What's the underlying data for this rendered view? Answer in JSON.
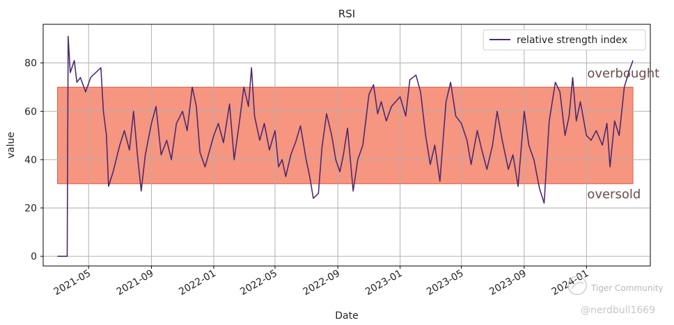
{
  "chart_data": {
    "type": "line",
    "title": "RSI",
    "xlabel": "Date",
    "ylabel": "value",
    "x_range": [
      "2021-02-01",
      "2024-05-05"
    ],
    "ylim": [
      -4,
      96
    ],
    "y_ticks": [
      0,
      20,
      40,
      60,
      80
    ],
    "x_ticks": [
      {
        "date": "2021-05-01",
        "label": "2021-05"
      },
      {
        "date": "2021-09-01",
        "label": "2021-09"
      },
      {
        "date": "2022-01-01",
        "label": "2022-01"
      },
      {
        "date": "2022-05-01",
        "label": "2022-05"
      },
      {
        "date": "2022-09-01",
        "label": "2022-09"
      },
      {
        "date": "2023-01-01",
        "label": "2023-01"
      },
      {
        "date": "2023-05-01",
        "label": "2023-05"
      },
      {
        "date": "2023-09-01",
        "label": "2023-09"
      },
      {
        "date": "2024-01-01",
        "label": "2024-01"
      }
    ],
    "grid": true,
    "legend_position": "top-right",
    "band": {
      "low": 30,
      "high": 70,
      "from": "2021-03-01",
      "to": "2024-04-01",
      "color": "#f5866e"
    },
    "annotations": [
      {
        "text": "overbought",
        "date": "2024-01-01",
        "value": 76
      },
      {
        "text": "oversold",
        "date": "2024-01-01",
        "value": 26
      }
    ],
    "series": [
      {
        "name": "relative strength index",
        "color": "#4b2a6f",
        "points": [
          [
            "2021-03-01",
            0
          ],
          [
            "2021-03-20",
            0
          ],
          [
            "2021-03-22",
            91
          ],
          [
            "2021-03-26",
            76
          ],
          [
            "2021-04-03",
            81
          ],
          [
            "2021-04-08",
            72
          ],
          [
            "2021-04-15",
            74
          ],
          [
            "2021-04-25",
            68
          ],
          [
            "2021-05-05",
            74
          ],
          [
            "2021-05-15",
            76
          ],
          [
            "2021-05-25",
            78
          ],
          [
            "2021-05-30",
            60
          ],
          [
            "2021-06-05",
            50
          ],
          [
            "2021-06-09",
            29
          ],
          [
            "2021-06-18",
            35
          ],
          [
            "2021-07-01",
            46
          ],
          [
            "2021-07-10",
            52
          ],
          [
            "2021-07-20",
            44
          ],
          [
            "2021-07-28",
            60
          ],
          [
            "2021-08-05",
            41
          ],
          [
            "2021-08-12",
            27
          ],
          [
            "2021-08-20",
            42
          ],
          [
            "2021-09-01",
            55
          ],
          [
            "2021-09-10",
            62
          ],
          [
            "2021-09-20",
            42
          ],
          [
            "2021-10-01",
            48
          ],
          [
            "2021-10-10",
            40
          ],
          [
            "2021-10-20",
            55
          ],
          [
            "2021-11-01",
            60
          ],
          [
            "2021-11-10",
            52
          ],
          [
            "2021-11-20",
            70
          ],
          [
            "2021-11-28",
            62
          ],
          [
            "2021-12-05",
            43
          ],
          [
            "2021-12-15",
            37
          ],
          [
            "2022-01-01",
            50
          ],
          [
            "2022-01-10",
            55
          ],
          [
            "2022-01-20",
            47
          ],
          [
            "2022-02-01",
            63
          ],
          [
            "2022-02-10",
            40
          ],
          [
            "2022-02-20",
            55
          ],
          [
            "2022-03-01",
            70
          ],
          [
            "2022-03-10",
            62
          ],
          [
            "2022-03-16",
            78
          ],
          [
            "2022-03-22",
            58
          ],
          [
            "2022-04-01",
            48
          ],
          [
            "2022-04-10",
            55
          ],
          [
            "2022-04-20",
            44
          ],
          [
            "2022-05-01",
            52
          ],
          [
            "2022-05-08",
            37
          ],
          [
            "2022-05-15",
            40
          ],
          [
            "2022-05-22",
            33
          ],
          [
            "2022-06-01",
            42
          ],
          [
            "2022-06-10",
            47
          ],
          [
            "2022-06-20",
            54
          ],
          [
            "2022-07-01",
            40
          ],
          [
            "2022-07-08",
            33
          ],
          [
            "2022-07-15",
            24
          ],
          [
            "2022-07-25",
            26
          ],
          [
            "2022-08-01",
            45
          ],
          [
            "2022-08-10",
            59
          ],
          [
            "2022-08-20",
            50
          ],
          [
            "2022-08-28",
            40
          ],
          [
            "2022-09-05",
            35
          ],
          [
            "2022-09-12",
            42
          ],
          [
            "2022-09-20",
            53
          ],
          [
            "2022-10-01",
            27
          ],
          [
            "2022-10-10",
            40
          ],
          [
            "2022-10-20",
            46
          ],
          [
            "2022-11-01",
            67
          ],
          [
            "2022-11-10",
            71
          ],
          [
            "2022-11-18",
            59
          ],
          [
            "2022-11-25",
            64
          ],
          [
            "2022-12-05",
            56
          ],
          [
            "2022-12-15",
            62
          ],
          [
            "2023-01-01",
            66
          ],
          [
            "2023-01-12",
            58
          ],
          [
            "2023-01-20",
            73
          ],
          [
            "2023-02-01",
            75
          ],
          [
            "2023-02-10",
            68
          ],
          [
            "2023-02-20",
            50
          ],
          [
            "2023-03-01",
            38
          ],
          [
            "2023-03-10",
            46
          ],
          [
            "2023-03-20",
            31
          ],
          [
            "2023-04-01",
            64
          ],
          [
            "2023-04-10",
            72
          ],
          [
            "2023-04-20",
            58
          ],
          [
            "2023-05-01",
            55
          ],
          [
            "2023-05-12",
            48
          ],
          [
            "2023-05-20",
            38
          ],
          [
            "2023-06-01",
            52
          ],
          [
            "2023-06-10",
            44
          ],
          [
            "2023-06-20",
            36
          ],
          [
            "2023-07-01",
            46
          ],
          [
            "2023-07-10",
            60
          ],
          [
            "2023-07-20",
            48
          ],
          [
            "2023-08-01",
            36
          ],
          [
            "2023-08-10",
            42
          ],
          [
            "2023-08-20",
            29
          ],
          [
            "2023-09-01",
            60
          ],
          [
            "2023-09-10",
            46
          ],
          [
            "2023-09-20",
            40
          ],
          [
            "2023-10-01",
            28
          ],
          [
            "2023-10-10",
            22
          ],
          [
            "2023-10-20",
            56
          ],
          [
            "2023-11-01",
            72
          ],
          [
            "2023-11-10",
            68
          ],
          [
            "2023-11-20",
            50
          ],
          [
            "2023-11-28",
            58
          ],
          [
            "2023-12-05",
            74
          ],
          [
            "2023-12-12",
            56
          ],
          [
            "2023-12-20",
            64
          ],
          [
            "2024-01-01",
            50
          ],
          [
            "2024-01-10",
            48
          ],
          [
            "2024-01-20",
            52
          ],
          [
            "2024-02-01",
            46
          ],
          [
            "2024-02-10",
            55
          ],
          [
            "2024-02-16",
            37
          ],
          [
            "2024-02-25",
            56
          ],
          [
            "2024-03-05",
            50
          ],
          [
            "2024-03-15",
            70
          ],
          [
            "2024-03-25",
            77
          ],
          [
            "2024-04-01",
            81
          ]
        ]
      }
    ]
  },
  "watermark": {
    "brand": "Tiger Community",
    "handle": "@nerdbull1669"
  }
}
